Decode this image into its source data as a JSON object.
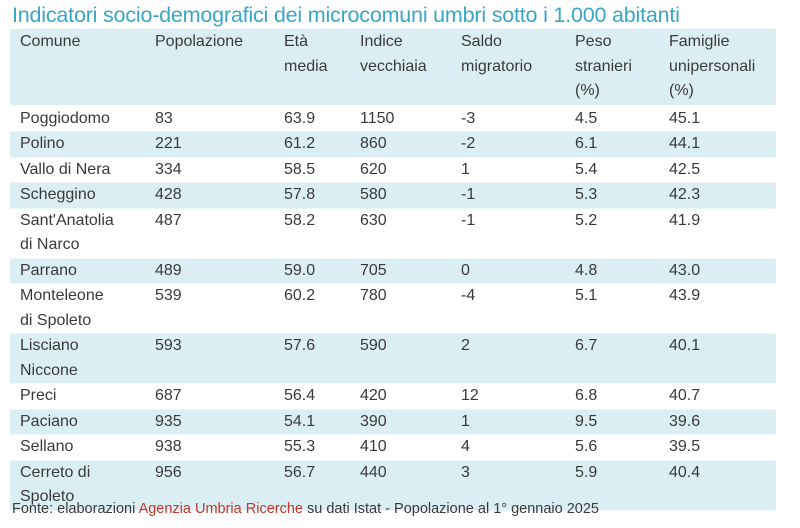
{
  "title": "Indicatori socio-demografici dei microcomuni umbri sotto i 1.000 abitanti",
  "columns": [
    [
      "Comune"
    ],
    [
      "Popolazione"
    ],
    [
      "Età",
      "media"
    ],
    [
      "Indice",
      "vecchiaia"
    ],
    [
      "Saldo",
      "migratorio"
    ],
    [
      "Peso",
      "stranieri",
      "(%)"
    ],
    [
      "Famiglie",
      "unipersonali",
      "(%)"
    ]
  ],
  "rows": [
    {
      "comune": [
        "Poggiodomo"
      ],
      "popolazione": "83",
      "eta_media": "63.9",
      "indice_vecchiaia": "1150",
      "saldo_migratorio": "-3",
      "peso_stranieri": "4.5",
      "famiglie_unipersonali": "45.1"
    },
    {
      "comune": [
        "Polino"
      ],
      "popolazione": "221",
      "eta_media": "61.2",
      "indice_vecchiaia": "860",
      "saldo_migratorio": "-2",
      "peso_stranieri": "6.1",
      "famiglie_unipersonali": "44.1"
    },
    {
      "comune": [
        "Vallo di Nera"
      ],
      "popolazione": "334",
      "eta_media": "58.5",
      "indice_vecchiaia": "620",
      "saldo_migratorio": "1",
      "peso_stranieri": "5.4",
      "famiglie_unipersonali": "42.5"
    },
    {
      "comune": [
        "Scheggino"
      ],
      "popolazione": "428",
      "eta_media": "57.8",
      "indice_vecchiaia": "580",
      "saldo_migratorio": "-1",
      "peso_stranieri": "5.3",
      "famiglie_unipersonali": "42.3"
    },
    {
      "comune": [
        "Sant'Anatolia",
        "di Narco"
      ],
      "popolazione": "487",
      "eta_media": "58.2",
      "indice_vecchiaia": "630",
      "saldo_migratorio": "-1",
      "peso_stranieri": "5.2",
      "famiglie_unipersonali": "41.9"
    },
    {
      "comune": [
        "Parrano"
      ],
      "popolazione": "489",
      "eta_media": "59.0",
      "indice_vecchiaia": "705",
      "saldo_migratorio": "0",
      "peso_stranieri": "4.8",
      "famiglie_unipersonali": "43.0"
    },
    {
      "comune": [
        "Monteleone",
        "di Spoleto"
      ],
      "popolazione": "539",
      "eta_media": "60.2",
      "indice_vecchiaia": "780",
      "saldo_migratorio": "-4",
      "peso_stranieri": "5.1",
      "famiglie_unipersonali": "43.9"
    },
    {
      "comune": [
        "Lisciano",
        "Niccone"
      ],
      "popolazione": "593",
      "eta_media": "57.6",
      "indice_vecchiaia": "590",
      "saldo_migratorio": "2",
      "peso_stranieri": "6.7",
      "famiglie_unipersonali": "40.1"
    },
    {
      "comune": [
        "Preci"
      ],
      "popolazione": "687",
      "eta_media": "56.4",
      "indice_vecchiaia": "420",
      "saldo_migratorio": "12",
      "peso_stranieri": "6.8",
      "famiglie_unipersonali": "40.7"
    },
    {
      "comune": [
        "Paciano"
      ],
      "popolazione": "935",
      "eta_media": "54.1",
      "indice_vecchiaia": "390",
      "saldo_migratorio": "1",
      "peso_stranieri": "9.5",
      "famiglie_unipersonali": "39.6"
    },
    {
      "comune": [
        "Sellano"
      ],
      "popolazione": "938",
      "eta_media": "55.3",
      "indice_vecchiaia": "410",
      "saldo_migratorio": "4",
      "peso_stranieri": "5.6",
      "famiglie_unipersonali": "39.5"
    },
    {
      "comune": [
        "Cerreto di",
        "Spoleto"
      ],
      "popolazione": "956",
      "eta_media": "56.7",
      "indice_vecchiaia": "440",
      "saldo_migratorio": "3",
      "peso_stranieri": "5.9",
      "famiglie_unipersonali": "40.4"
    }
  ],
  "source": {
    "prefix": "Fonte: elaborazioni ",
    "brand": "Agenzia Umbria Ricerche",
    "suffix": " su dati Istat - Popolazione al 1° gennaio 2025"
  },
  "colors": {
    "title": "#38a7c7",
    "row_shade": "#daeef3",
    "brand": "#c0392b",
    "text": "#3a3a3a"
  }
}
